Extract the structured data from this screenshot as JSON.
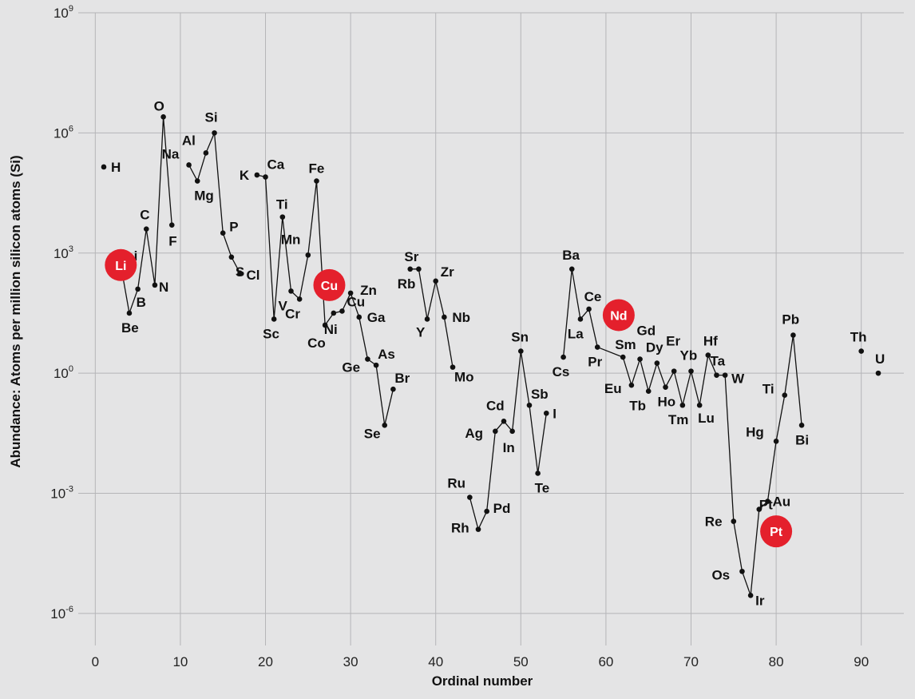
{
  "chart_data": {
    "type": "scatter",
    "title": "",
    "xlabel": "Ordinal number",
    "ylabel": "Abundance: Atoms per million silicon atoms (Si)",
    "y_scale": "log10",
    "xlim": [
      -2,
      95
    ],
    "ylim": [
      -6.8,
      9
    ],
    "grid": true,
    "x_ticks": [
      0,
      10,
      20,
      30,
      40,
      50,
      60,
      70,
      80,
      90
    ],
    "x_tick_labels": [
      "0",
      "10",
      "20",
      "30",
      "40",
      "50",
      "60",
      "70",
      "80",
      "90"
    ],
    "y_ticks": [
      9,
      6,
      3,
      0,
      -3,
      -6
    ],
    "y_tick_labels": [
      {
        "base": "10",
        "exp": "9"
      },
      {
        "base": "10",
        "exp": "6"
      },
      {
        "base": "10",
        "exp": "3"
      },
      {
        "base": "10",
        "exp": "0"
      },
      {
        "base": "10",
        "exp": "-3"
      },
      {
        "base": "10",
        "exp": "-6"
      }
    ],
    "highlight_color": "#e4202c",
    "elements": [
      {
        "symbol": "H",
        "z": 1,
        "log_abundance": 5.15
      },
      {
        "symbol": "Li",
        "z": 3,
        "log_abundance": 2.7
      },
      {
        "symbol": "Be",
        "z": 4,
        "log_abundance": 1.5
      },
      {
        "symbol": "B",
        "z": 5,
        "log_abundance": 2.1
      },
      {
        "symbol": "C",
        "z": 6,
        "log_abundance": 3.6
      },
      {
        "symbol": "N",
        "z": 7,
        "log_abundance": 2.2
      },
      {
        "symbol": "O",
        "z": 8,
        "log_abundance": 6.4
      },
      {
        "symbol": "F",
        "z": 9,
        "log_abundance": 3.7
      },
      {
        "symbol": "Na",
        "z": 11,
        "log_abundance": 5.2
      },
      {
        "symbol": "Mg",
        "z": 12,
        "log_abundance": 4.8
      },
      {
        "symbol": "Al",
        "z": 13,
        "log_abundance": 5.5
      },
      {
        "symbol": "Si",
        "z": 14,
        "log_abundance": 6.0
      },
      {
        "symbol": "P",
        "z": 15,
        "log_abundance": 3.5
      },
      {
        "symbol": "S",
        "z": 16,
        "log_abundance": 2.9
      },
      {
        "symbol": "Cl",
        "z": 17,
        "log_abundance": 2.5
      },
      {
        "symbol": "K",
        "z": 19,
        "log_abundance": 4.95
      },
      {
        "symbol": "Ca",
        "z": 20,
        "log_abundance": 4.9
      },
      {
        "symbol": "Sc",
        "z": 21,
        "log_abundance": 1.35
      },
      {
        "symbol": "Ti",
        "z": 22,
        "log_abundance": 3.9
      },
      {
        "symbol": "V",
        "z": 23,
        "log_abundance": 2.05
      },
      {
        "symbol": "Cr",
        "z": 24,
        "log_abundance": 1.85
      },
      {
        "symbol": "Mn",
        "z": 25,
        "log_abundance": 2.95
      },
      {
        "symbol": "Fe",
        "z": 26,
        "log_abundance": 4.8
      },
      {
        "symbol": "Cu",
        "z": 27.5,
        "log_abundance": 2.2,
        "highlight": true
      },
      {
        "symbol": "Co",
        "z": 27,
        "log_abundance": 1.2
      },
      {
        "symbol": "Ni",
        "z": 28,
        "log_abundance": 1.5
      },
      {
        "symbol": "Cu",
        "z": 29,
        "log_abundance": 1.55
      },
      {
        "symbol": "Zn",
        "z": 30,
        "log_abundance": 2.0
      },
      {
        "symbol": "Ga",
        "z": 31,
        "log_abundance": 1.4
      },
      {
        "symbol": "Ge",
        "z": 32,
        "log_abundance": 0.35
      },
      {
        "symbol": "As",
        "z": 33,
        "log_abundance": 0.2
      },
      {
        "symbol": "Se",
        "z": 34,
        "log_abundance": -1.3
      },
      {
        "symbol": "Br",
        "z": 35,
        "log_abundance": -0.4
      },
      {
        "symbol": "Rb",
        "z": 37,
        "log_abundance": 2.6
      },
      {
        "symbol": "Sr",
        "z": 38,
        "log_abundance": 2.6
      },
      {
        "symbol": "Y",
        "z": 39,
        "log_abundance": 1.35
      },
      {
        "symbol": "Zr",
        "z": 40,
        "log_abundance": 2.3
      },
      {
        "symbol": "Nb",
        "z": 41,
        "log_abundance": 1.4
      },
      {
        "symbol": "Mo",
        "z": 42,
        "log_abundance": 0.15
      },
      {
        "symbol": "Ru",
        "z": 44,
        "log_abundance": -3.1
      },
      {
        "symbol": "Rh",
        "z": 45,
        "log_abundance": -3.9
      },
      {
        "symbol": "Pd",
        "z": 46,
        "log_abundance": -3.45
      },
      {
        "symbol": "Ag",
        "z": 47,
        "log_abundance": -1.45
      },
      {
        "symbol": "Cd",
        "z": 48,
        "log_abundance": -1.2
      },
      {
        "symbol": "In",
        "z": 49,
        "log_abundance": -1.45
      },
      {
        "symbol": "Sn",
        "z": 50,
        "log_abundance": 0.55
      },
      {
        "symbol": "Sb",
        "z": 51,
        "log_abundance": -0.8
      },
      {
        "symbol": "Te",
        "z": 52,
        "log_abundance": -2.5
      },
      {
        "symbol": "I",
        "z": 53,
        "log_abundance": -1.0
      },
      {
        "symbol": "Cs",
        "z": 55,
        "log_abundance": 0.4
      },
      {
        "symbol": "Ba",
        "z": 56,
        "log_abundance": 2.6
      },
      {
        "symbol": "La",
        "z": 57,
        "log_abundance": 1.35
      },
      {
        "symbol": "Ce",
        "z": 58,
        "log_abundance": 1.6
      },
      {
        "symbol": "Pr",
        "z": 59,
        "log_abundance": 0.65
      },
      {
        "symbol": "Nd",
        "z": 61.5,
        "log_abundance": 1.45,
        "highlight": true
      },
      {
        "symbol": "Sm",
        "z": 62,
        "log_abundance": 0.4
      },
      {
        "symbol": "Eu",
        "z": 63,
        "log_abundance": -0.3
      },
      {
        "symbol": "Gd",
        "z": 64,
        "log_abundance": 0.35
      },
      {
        "symbol": "Tb",
        "z": 65,
        "log_abundance": -0.45
      },
      {
        "symbol": "Dy",
        "z": 66,
        "log_abundance": 0.25
      },
      {
        "symbol": "Ho",
        "z": 67,
        "log_abundance": -0.35
      },
      {
        "symbol": "Er",
        "z": 68,
        "log_abundance": 0.05
      },
      {
        "symbol": "Tm",
        "z": 69,
        "log_abundance": -0.8
      },
      {
        "symbol": "Yb",
        "z": 70,
        "log_abundance": 0.05
      },
      {
        "symbol": "Lu",
        "z": 71,
        "log_abundance": -0.8
      },
      {
        "symbol": "Hf",
        "z": 72,
        "log_abundance": 0.45
      },
      {
        "symbol": "Ta",
        "z": 73,
        "log_abundance": -0.05
      },
      {
        "symbol": "W",
        "z": 74,
        "log_abundance": -0.05
      },
      {
        "symbol": "Re",
        "z": 75,
        "log_abundance": -3.7
      },
      {
        "symbol": "Os",
        "z": 76,
        "log_abundance": -4.95
      },
      {
        "symbol": "Ir",
        "z": 77,
        "log_abundance": -5.55
      },
      {
        "symbol": "Pt",
        "z": 78,
        "log_abundance": -3.4
      },
      {
        "symbol": "Pt",
        "z": 80,
        "log_abundance": -3.95,
        "highlight": true
      },
      {
        "symbol": "Au",
        "z": 79,
        "log_abundance": -3.2
      },
      {
        "symbol": "Hg",
        "z": 80,
        "log_abundance": -1.7
      },
      {
        "symbol": "Ti",
        "z": 81,
        "log_abundance": -0.55
      },
      {
        "symbol": "Pb",
        "z": 82,
        "log_abundance": 0.95
      },
      {
        "symbol": "Bi",
        "z": 83,
        "log_abundance": -1.3
      },
      {
        "symbol": "Th",
        "z": 90,
        "log_abundance": 0.55
      },
      {
        "symbol": "U",
        "z": 92,
        "log_abundance": 0.0
      }
    ]
  }
}
